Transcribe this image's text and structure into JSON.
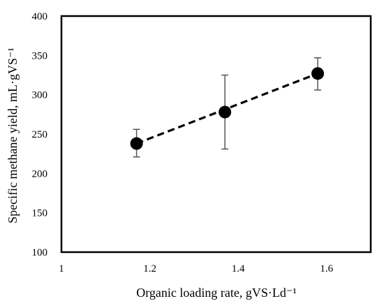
{
  "chart_data": {
    "type": "scatter",
    "title": "",
    "xlabel": "Organic loading rate, gVS·Ld⁻¹",
    "ylabel": "Specific methane yield, mL·gVS⁻¹",
    "xlim": [
      1,
      1.7
    ],
    "ylim": [
      100,
      400
    ],
    "x_ticks": [
      1,
      1.2,
      1.4,
      1.6
    ],
    "x_tick_labels": [
      "1",
      "1.2",
      "1.4",
      "1.6"
    ],
    "y_ticks": [
      100,
      150,
      200,
      250,
      300,
      350,
      400
    ],
    "y_tick_labels": [
      "100",
      "150",
      "200",
      "250",
      "300",
      "350",
      "400"
    ],
    "grid": false,
    "legend": "none",
    "series": [
      {
        "x": [
          1.17,
          1.37,
          1.58
        ],
        "y": [
          238,
          278,
          327
        ],
        "error_low": [
          221,
          231,
          306
        ],
        "error_high": [
          256,
          325,
          347
        ]
      }
    ],
    "trendline": {
      "style": "dashed",
      "x": [
        1.17,
        1.58
      ],
      "y": [
        238,
        327
      ]
    },
    "colors": {
      "marker": "#000000",
      "error_bar": "#555555",
      "trendline": "#000000"
    }
  }
}
